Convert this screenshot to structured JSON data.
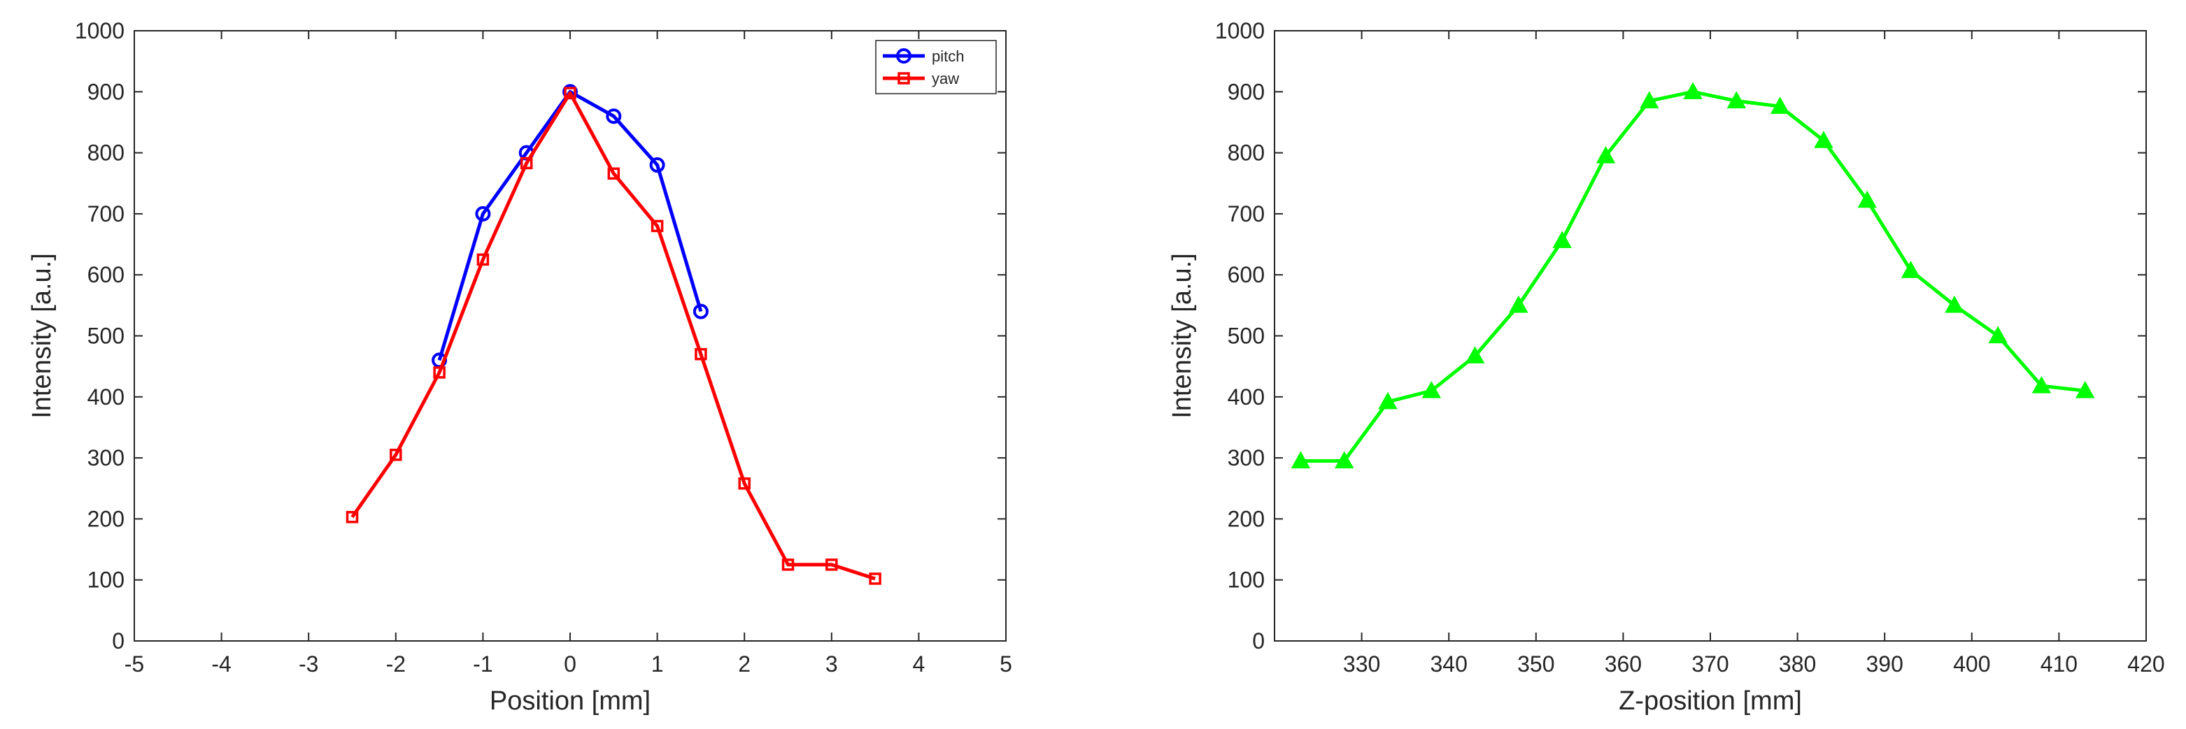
{
  "chart_data": [
    {
      "type": "line",
      "title": "",
      "xlabel": "Position [mm]",
      "ylabel": "Intensity [a.u.]",
      "xlim": [
        -5,
        5
      ],
      "ylim": [
        0,
        1000
      ],
      "xticks": [
        -5,
        -4,
        -3,
        -2,
        -1,
        0,
        1,
        2,
        3,
        4,
        5
      ],
      "yticks": [
        0,
        100,
        200,
        300,
        400,
        500,
        600,
        700,
        800,
        900,
        1000
      ],
      "grid": false,
      "legend": "top-right",
      "series": [
        {
          "name": "pitch",
          "color": "#0000ff",
          "marker": "circle",
          "x": [
            -1.5,
            -1,
            -0.5,
            0,
            0.5,
            1,
            1.5
          ],
          "y": [
            460,
            700,
            800,
            900,
            860,
            780,
            540
          ]
        },
        {
          "name": "yaw",
          "color": "#ff0000",
          "marker": "square",
          "x": [
            -2.5,
            -2,
            -1.5,
            -1,
            -0.5,
            0,
            0.5,
            1,
            1.5,
            2,
            2.5,
            3,
            3.5
          ],
          "y": [
            203,
            305,
            440,
            625,
            783,
            898,
            766,
            680,
            470,
            258,
            125,
            125,
            102
          ]
        }
      ]
    },
    {
      "type": "line",
      "title": "",
      "xlabel": "Z-position [mm]",
      "ylabel": "Intensity [a.u.]",
      "xlim": [
        320,
        420
      ],
      "ylim": [
        0,
        1000
      ],
      "xticks": [
        330,
        340,
        350,
        360,
        370,
        380,
        390,
        400,
        410,
        420
      ],
      "yticks": [
        0,
        100,
        200,
        300,
        400,
        500,
        600,
        700,
        800,
        900,
        1000
      ],
      "grid": false,
      "series": [
        {
          "color": "#00ff00",
          "marker": "triangle",
          "x": [
            323,
            328,
            333,
            338,
            343,
            348,
            353,
            358,
            363,
            368,
            373,
            378,
            383,
            388,
            393,
            398,
            403,
            408,
            413
          ],
          "y": [
            295,
            295,
            392,
            410,
            467,
            550,
            656,
            795,
            885,
            900,
            885,
            876,
            820,
            722,
            607,
            550,
            500,
            418,
            410
          ]
        }
      ]
    }
  ]
}
